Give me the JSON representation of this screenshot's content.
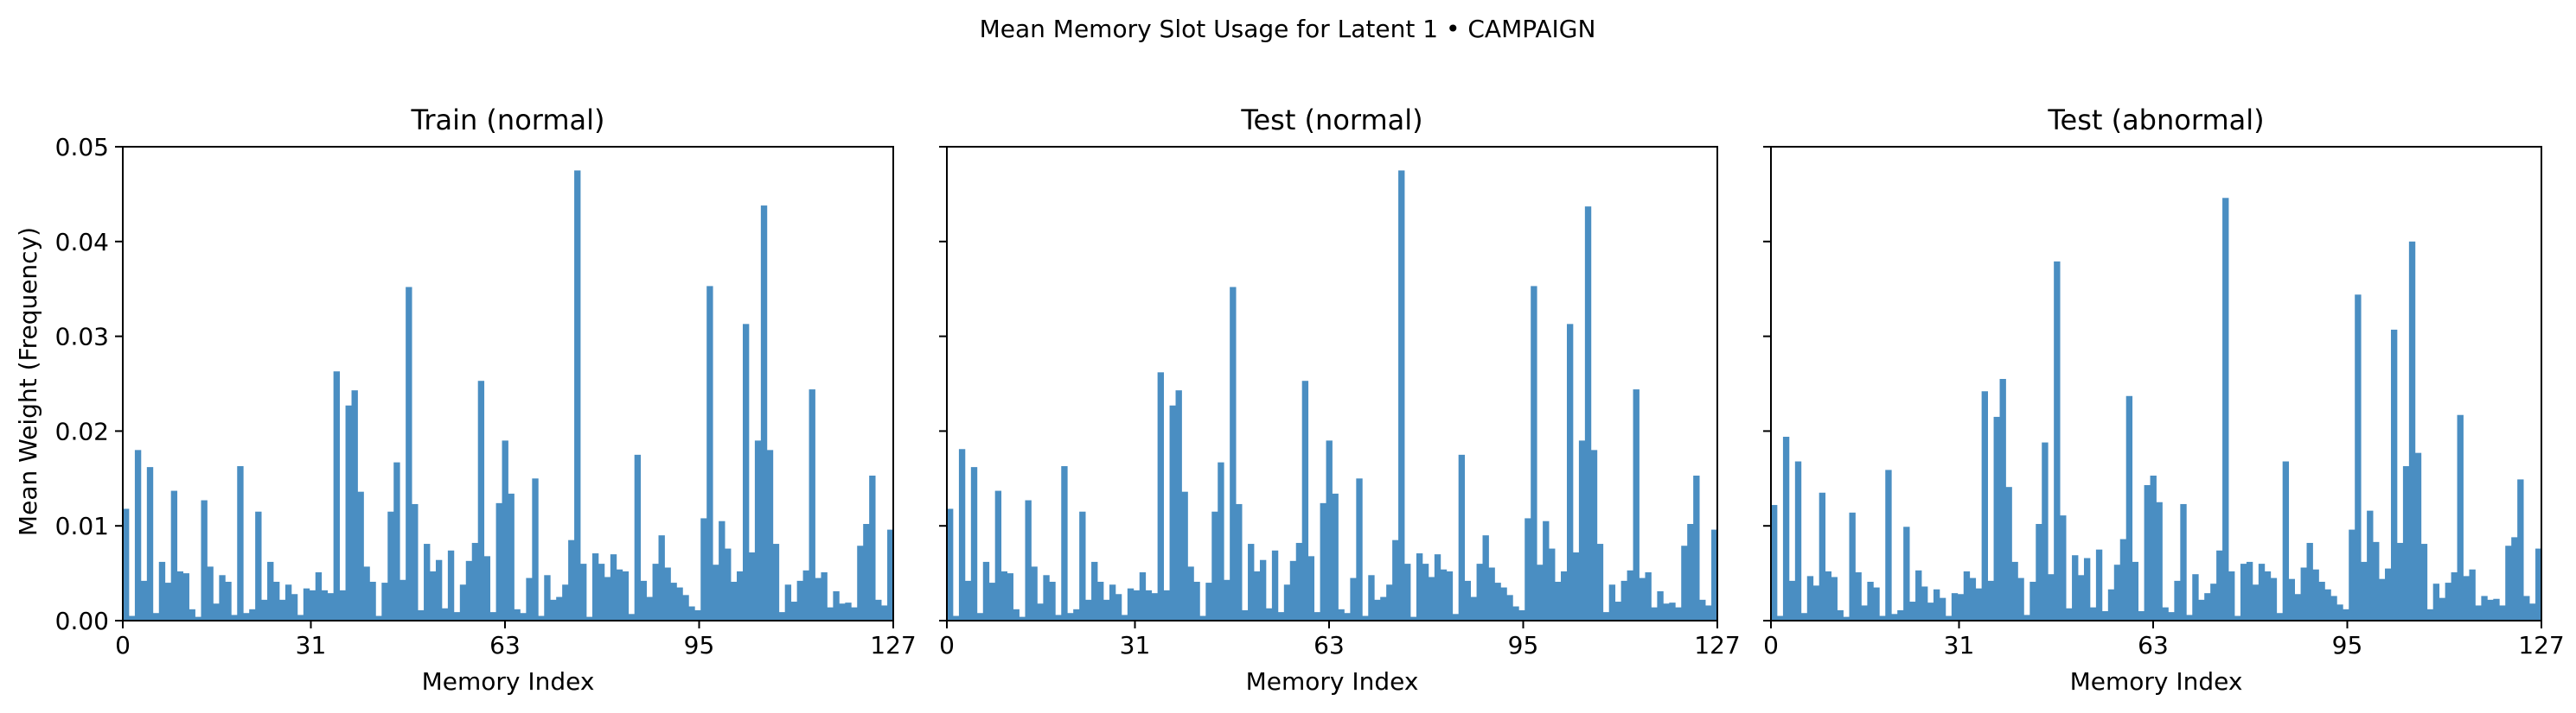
{
  "chart_data": {
    "type": "bar",
    "title": "Mean Memory Slot Usage for Latent 1 • CAMPAIGN",
    "xlabel": "Memory Index",
    "ylabel": "Mean Weight (Frequency)",
    "xlim": [
      0,
      127
    ],
    "ylim": [
      0,
      0.05
    ],
    "xticks": [
      "0",
      "31",
      "63",
      "95",
      "127"
    ],
    "yticks": [
      "0.00",
      "0.01",
      "0.02",
      "0.03",
      "0.04",
      "0.05"
    ],
    "bar_color": "#4a8ec2",
    "grid": false,
    "panels": [
      {
        "title": "Train (normal)",
        "values": [
          0.0118,
          0.0005,
          0.018,
          0.0042,
          0.0162,
          0.0008,
          0.0062,
          0.004,
          0.0137,
          0.0052,
          0.005,
          0.0012,
          0.0004,
          0.0127,
          0.0057,
          0.0018,
          0.0048,
          0.0041,
          0.0006,
          0.0163,
          0.0008,
          0.0012,
          0.0115,
          0.0022,
          0.0062,
          0.0041,
          0.0022,
          0.0038,
          0.0028,
          0.0006,
          0.0034,
          0.0032,
          0.0051,
          0.0032,
          0.0029,
          0.0263,
          0.0032,
          0.0227,
          0.0243,
          0.0136,
          0.0057,
          0.0041,
          0.0005,
          0.004,
          0.0115,
          0.0167,
          0.0043,
          0.0352,
          0.0123,
          0.0011,
          0.0081,
          0.0052,
          0.0064,
          0.0013,
          0.0074,
          0.0009,
          0.0038,
          0.0063,
          0.0082,
          0.0253,
          0.0068,
          0.0009,
          0.0124,
          0.019,
          0.0134,
          0.0012,
          0.0008,
          0.0045,
          0.015,
          0.0005,
          0.0048,
          0.0022,
          0.0025,
          0.0038,
          0.0085,
          0.0475,
          0.006,
          0.0004,
          0.0071,
          0.006,
          0.0046,
          0.007,
          0.0054,
          0.0052,
          0.0007,
          0.0175,
          0.0042,
          0.0025,
          0.006,
          0.009,
          0.0056,
          0.004,
          0.0035,
          0.0027,
          0.0015,
          0.0011,
          0.0108,
          0.0353,
          0.0059,
          0.0105,
          0.0076,
          0.0041,
          0.0052,
          0.0313,
          0.0072,
          0.019,
          0.0438,
          0.018,
          0.0081,
          0.0009,
          0.0038,
          0.002,
          0.0042,
          0.0053,
          0.0244,
          0.0045,
          0.0051,
          0.0014,
          0.0031,
          0.0018,
          0.0019,
          0.0014,
          0.0079,
          0.0102,
          0.0153,
          0.0022,
          0.0016,
          0.0096
        ]
      },
      {
        "title": "Test (normal)",
        "values": [
          0.0118,
          0.0005,
          0.0181,
          0.0042,
          0.0162,
          0.0008,
          0.0062,
          0.004,
          0.0137,
          0.0052,
          0.005,
          0.0012,
          0.0004,
          0.0127,
          0.0057,
          0.0018,
          0.0048,
          0.0041,
          0.0006,
          0.0163,
          0.0008,
          0.0012,
          0.0115,
          0.0022,
          0.0062,
          0.0041,
          0.0022,
          0.0038,
          0.0028,
          0.0006,
          0.0034,
          0.0032,
          0.0051,
          0.0032,
          0.0029,
          0.0262,
          0.0032,
          0.0227,
          0.0243,
          0.0136,
          0.0057,
          0.0041,
          0.0005,
          0.004,
          0.0115,
          0.0167,
          0.0043,
          0.0352,
          0.0123,
          0.0011,
          0.0081,
          0.0052,
          0.0064,
          0.0013,
          0.0074,
          0.0009,
          0.0038,
          0.0063,
          0.0082,
          0.0253,
          0.0068,
          0.0009,
          0.0124,
          0.019,
          0.0134,
          0.0012,
          0.0008,
          0.0045,
          0.015,
          0.0005,
          0.0048,
          0.0022,
          0.0025,
          0.0038,
          0.0085,
          0.0475,
          0.006,
          0.0004,
          0.0071,
          0.006,
          0.0046,
          0.007,
          0.0054,
          0.0052,
          0.0007,
          0.0175,
          0.0042,
          0.0025,
          0.006,
          0.009,
          0.0056,
          0.004,
          0.0035,
          0.0027,
          0.0015,
          0.0011,
          0.0108,
          0.0353,
          0.0059,
          0.0105,
          0.0076,
          0.0041,
          0.0052,
          0.0313,
          0.0072,
          0.019,
          0.0437,
          0.018,
          0.0081,
          0.0009,
          0.0038,
          0.002,
          0.0042,
          0.0053,
          0.0244,
          0.0045,
          0.0051,
          0.0014,
          0.0031,
          0.0018,
          0.0019,
          0.0014,
          0.0079,
          0.0102,
          0.0153,
          0.0022,
          0.0016,
          0.0096
        ]
      },
      {
        "title": "Test (abnormal)",
        "values": [
          0.0122,
          0.0005,
          0.0194,
          0.0042,
          0.0168,
          0.0008,
          0.0047,
          0.0037,
          0.0135,
          0.0052,
          0.0046,
          0.0011,
          0.0004,
          0.0114,
          0.0051,
          0.0016,
          0.0041,
          0.0035,
          0.0005,
          0.0159,
          0.0007,
          0.0011,
          0.0099,
          0.002,
          0.0053,
          0.0036,
          0.0019,
          0.0033,
          0.0024,
          0.0005,
          0.0029,
          0.0028,
          0.0052,
          0.0045,
          0.0034,
          0.0242,
          0.0042,
          0.0215,
          0.0255,
          0.0141,
          0.0062,
          0.0045,
          0.0006,
          0.0041,
          0.0102,
          0.0188,
          0.0049,
          0.0379,
          0.0111,
          0.0013,
          0.0069,
          0.0048,
          0.0066,
          0.0014,
          0.0075,
          0.001,
          0.0033,
          0.0059,
          0.0086,
          0.0237,
          0.0062,
          0.001,
          0.0143,
          0.0153,
          0.0125,
          0.0014,
          0.0009,
          0.0042,
          0.0123,
          0.0006,
          0.0049,
          0.0022,
          0.0029,
          0.0039,
          0.0074,
          0.0446,
          0.0052,
          0.0005,
          0.006,
          0.0062,
          0.0038,
          0.006,
          0.0052,
          0.0045,
          0.0008,
          0.0168,
          0.0044,
          0.0028,
          0.0056,
          0.0082,
          0.0054,
          0.0041,
          0.0033,
          0.0026,
          0.0017,
          0.0012,
          0.0096,
          0.0344,
          0.0062,
          0.0116,
          0.0083,
          0.0044,
          0.0055,
          0.0307,
          0.0082,
          0.0163,
          0.04,
          0.0177,
          0.0081,
          0.0012,
          0.0039,
          0.0024,
          0.004,
          0.0051,
          0.0217,
          0.0047,
          0.0054,
          0.0016,
          0.0026,
          0.0022,
          0.0023,
          0.0016,
          0.0079,
          0.0088,
          0.0149,
          0.0026,
          0.0018,
          0.0076
        ]
      }
    ]
  }
}
